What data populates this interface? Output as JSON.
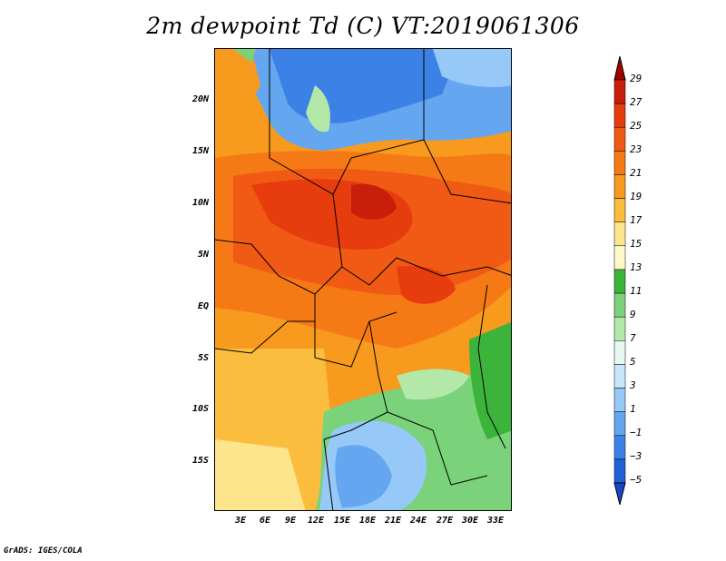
{
  "title": "2m dewpoint Td (C) VT:2019061306",
  "footer": "GrADS: IGES/COLA",
  "map": {
    "region": "Central Africa",
    "lat_range": [
      -20,
      24
    ],
    "lon_range": [
      0,
      35
    ],
    "lat_labels": [
      "20N",
      "15N",
      "10N",
      "5N",
      "EQ",
      "5S",
      "10S",
      "15S"
    ],
    "lon_labels": [
      "3E",
      "6E",
      "9E",
      "12E",
      "15E",
      "18E",
      "21E",
      "24E",
      "27E",
      "30E",
      "33E"
    ]
  },
  "legend": {
    "labels": [
      "29",
      "27",
      "25",
      "23",
      "21",
      "19",
      "17",
      "15",
      "13",
      "11",
      "9",
      "7",
      "5",
      "3",
      "1",
      "−1",
      "−3",
      "−5"
    ],
    "colors": [
      "#a50000",
      "#c81e0a",
      "#e63c0e",
      "#f05a14",
      "#f57a16",
      "#f89a1e",
      "#fbbd3e",
      "#fde58e",
      "#fff8c8",
      "#3cb43c",
      "#7ad27a",
      "#b4e8a8",
      "#e6f8f0",
      "#c8e6fa",
      "#96c8f8",
      "#64a6f0",
      "#3c82e6",
      "#2060d8",
      "#1448c8"
    ]
  },
  "colors": {
    "frame": "#000000",
    "background": "#ffffff"
  }
}
